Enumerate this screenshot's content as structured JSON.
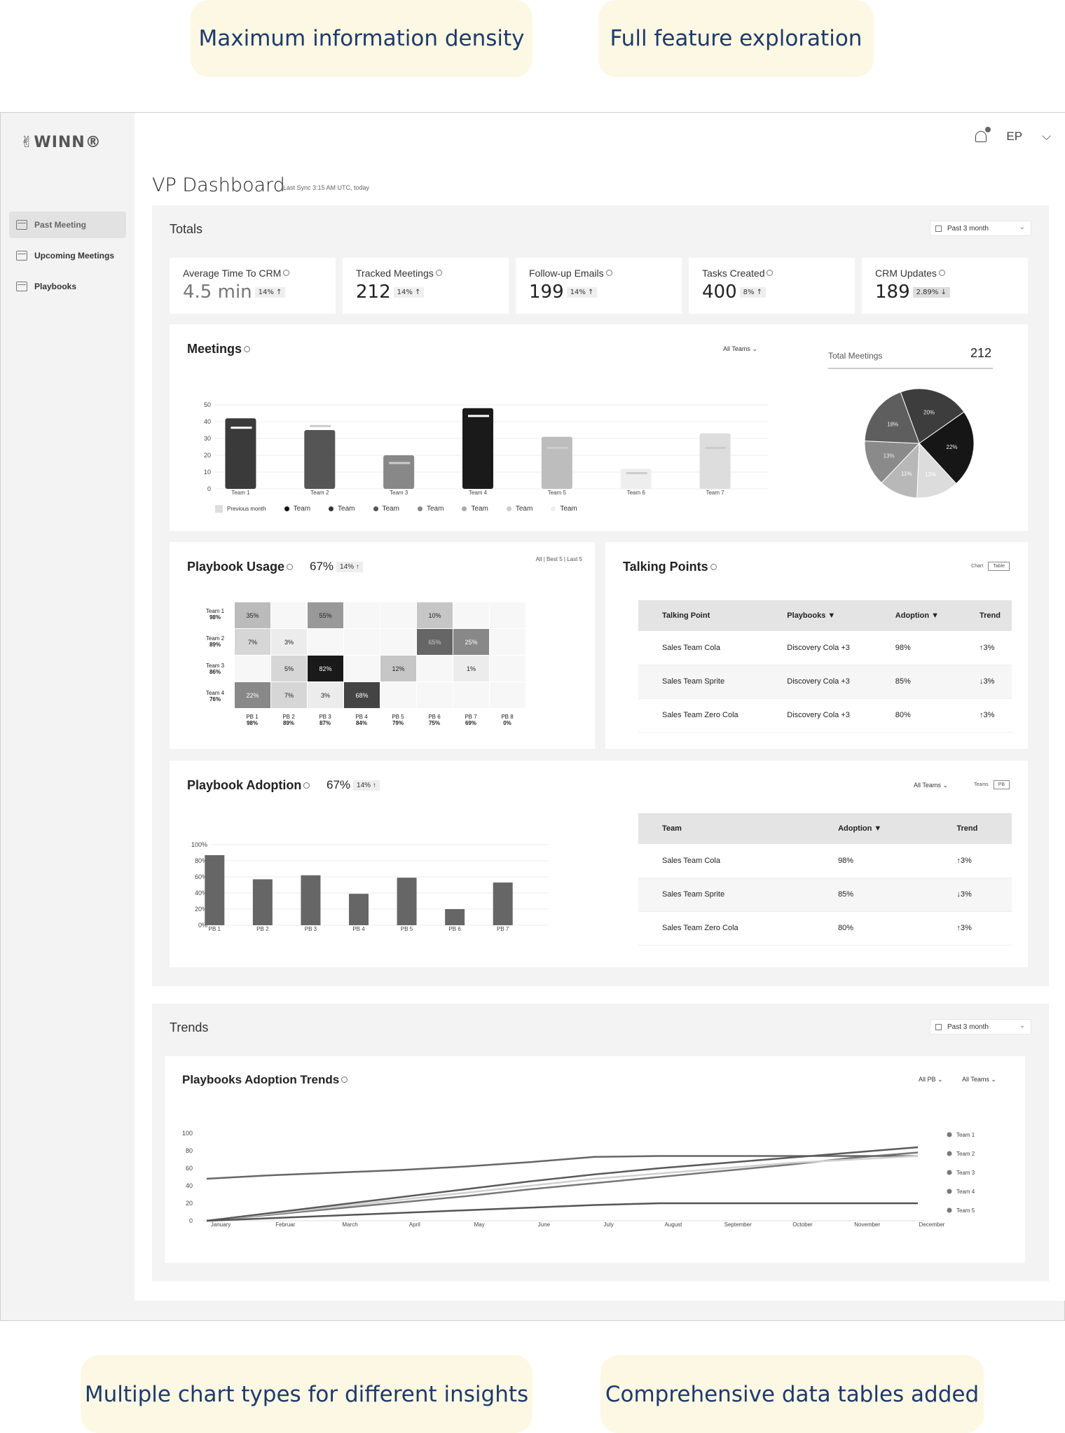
{
  "callouts": {
    "tl": "Maximum information density",
    "tr": "Full feature exploration",
    "bl": "Multiple chart types for different insights",
    "br": "Comprehensive data tables added"
  },
  "logo": "✌WINN®",
  "sidebar": {
    "items": [
      {
        "label": "Past Meeting"
      },
      {
        "label": "Upcoming Meetings"
      },
      {
        "label": "Playbooks"
      }
    ]
  },
  "header": {
    "user": "EP",
    "title": "VP Dashboard",
    "sync": "Last Sync 3:15 AM UTC, today"
  },
  "totals": {
    "title": "Totals",
    "range": "Past 3 month",
    "kpis": [
      {
        "label": "Average Time To CRM",
        "value": "4.5 min",
        "badge": "14% ↑"
      },
      {
        "label": "Tracked Meetings",
        "value": "212",
        "badge": "14% ↑"
      },
      {
        "label": "Follow-up Emails",
        "value": "199",
        "badge": "14% ↑"
      },
      {
        "label": "Tasks Created",
        "value": "400",
        "badge": "8% ↑"
      },
      {
        "label": "CRM Updates",
        "value": "189",
        "badge": "2.89% ↓"
      }
    ]
  },
  "meetings": {
    "title": "Meetings",
    "filter": "All Teams",
    "total_label": "Total Meetings",
    "total_value": "212",
    "legend": [
      "Previous month",
      "Team",
      "Team",
      "Team",
      "Team",
      "Team",
      "Team",
      "Team"
    ]
  },
  "playbook_usage": {
    "title": "Playbook Usage",
    "pct": "67%",
    "badge": "14% ↑",
    "filter": "All | Best 5 | Last 5",
    "rows": [
      {
        "label": "Team 1",
        "pct": "98%"
      },
      {
        "label": "Team 2",
        "pct": "89%"
      },
      {
        "label": "Team 3",
        "pct": "86%"
      },
      {
        "label": "Team 4",
        "pct": "76%"
      }
    ],
    "cols": [
      {
        "label": "PB 1",
        "pct": "98%"
      },
      {
        "label": "PB 2",
        "pct": "89%"
      },
      {
        "label": "PB 3",
        "pct": "87%"
      },
      {
        "label": "PB 4",
        "pct": "84%"
      },
      {
        "label": "PB 5",
        "pct": "79%"
      },
      {
        "label": "PB 6",
        "pct": "75%"
      },
      {
        "label": "PB 7",
        "pct": "69%"
      },
      {
        "label": "PB 8",
        "pct": "0%"
      }
    ],
    "cells": [
      [
        "35%",
        "",
        "55%",
        "",
        "",
        "10%",
        "",
        ""
      ],
      [
        "7%",
        "3%",
        "",
        "",
        "",
        "65%",
        "25%",
        ""
      ],
      [
        "",
        "5%",
        "82%",
        "",
        "12%",
        "",
        "1%",
        ""
      ],
      [
        "22%",
        "7%",
        "3%",
        "68%",
        "",
        "",
        "",
        ""
      ]
    ]
  },
  "talking_points": {
    "title": "Talking Points",
    "toggle": [
      "Chart",
      "Table"
    ],
    "headers": [
      "Talking Point",
      "Playbooks ▼",
      "Adoption ▼",
      "Trend"
    ],
    "rows": [
      [
        "Sales Team Cola",
        "Discovery Cola +3",
        "98%",
        "↑3%"
      ],
      [
        "Sales Team Sprite",
        "Discovery Cola +3",
        "85%",
        "↓3%"
      ],
      [
        "Sales Team Zero Cola",
        "Discovery Cola +3",
        "80%",
        "↑3%"
      ]
    ]
  },
  "playbook_adoption": {
    "title": "Playbook Adoption",
    "pct": "67%",
    "badge": "14% ↑",
    "filter": "All Teams",
    "toggle": [
      "Teams",
      "PB"
    ],
    "headers": [
      "Team",
      "Adoption ▼",
      "Trend"
    ],
    "rows": [
      [
        "Sales Team Cola",
        "98%",
        "↑3%"
      ],
      [
        "Sales Team Sprite",
        "85%",
        "↓3%"
      ],
      [
        "Sales Team Zero Cola",
        "80%",
        "↑3%"
      ]
    ]
  },
  "trends": {
    "title": "Trends",
    "range": "Past 3 month",
    "chart_title": "Playbooks Adoption Trends",
    "filters": [
      "All PB",
      "All Teams"
    ]
  },
  "chart_data": [
    {
      "type": "bar",
      "title": "Meetings",
      "categories": [
        "Team 1",
        "Team 2",
        "Team 3",
        "Team 4",
        "Team 5",
        "Team 6",
        "Team 7"
      ],
      "ylim": [
        0,
        50
      ],
      "yticks": [
        0,
        10,
        20,
        30,
        40,
        50
      ],
      "series": [
        {
          "name": "Team",
          "values": [
            42,
            35,
            20,
            48,
            31,
            12,
            33
          ],
          "colors": [
            "#3a3a3a",
            "#555555",
            "#888888",
            "#1a1a1a",
            "#bdbdbd",
            "#eeeeee",
            "#dddddd"
          ]
        },
        {
          "name": "Previous month",
          "values": [
            37,
            38,
            16,
            44,
            25,
            10,
            25
          ]
        }
      ]
    },
    {
      "type": "pie",
      "title": "Total Meetings",
      "values": [
        20,
        22,
        12,
        11,
        13,
        18
      ],
      "labels": [
        "20%",
        "22%",
        "12%",
        "11%",
        "13%",
        "18%"
      ],
      "colors": [
        "#3d3d3d",
        "#161616",
        "#dcdcdc",
        "#b8b8b8",
        "#8a8a8a",
        "#5e5e5e"
      ]
    },
    {
      "type": "bar",
      "title": "Playbook Adoption",
      "categories": [
        "PB 1",
        "PB 2",
        "PB 3",
        "PB 4",
        "PB 5",
        "PB 6",
        "PB 7"
      ],
      "values": [
        87,
        57,
        62,
        39,
        59,
        20,
        53
      ],
      "ylim": [
        0,
        100
      ],
      "yticks": [
        "0%",
        "20%",
        "40%",
        "60%",
        "80%",
        "100%"
      ]
    },
    {
      "type": "line",
      "title": "Playbooks Adoption Trends",
      "x": [
        "January",
        "Februar",
        "March",
        "April",
        "May",
        "June",
        "July",
        "August",
        "September",
        "October",
        "November",
        "December"
      ],
      "ylim": [
        0,
        100
      ],
      "yticks": [
        0,
        20,
        40,
        60,
        80,
        100
      ],
      "series": [
        {
          "name": "Team 1",
          "values": [
            0,
            7,
            14,
            21,
            28,
            36,
            43,
            50,
            57,
            64,
            72,
            78
          ],
          "color": "#777777"
        },
        {
          "name": "Team 2",
          "values": [
            48,
            52,
            55,
            58,
            62,
            67,
            73,
            74,
            74,
            74,
            74,
            74
          ],
          "color": "#666666"
        },
        {
          "name": "Team 3",
          "values": [
            0,
            8,
            16,
            24,
            32,
            40,
            48,
            54,
            60,
            66,
            70,
            74
          ],
          "color": "#d0d0d0"
        },
        {
          "name": "Team 4",
          "values": [
            0,
            9,
            18,
            27,
            36,
            45,
            53,
            60,
            66,
            72,
            78,
            84
          ],
          "color": "#5a5a5a"
        },
        {
          "name": "Team 5",
          "values": [
            0,
            3,
            6,
            9,
            12,
            15,
            18,
            20,
            20,
            20,
            20,
            20
          ],
          "color": "#555555"
        }
      ]
    }
  ]
}
